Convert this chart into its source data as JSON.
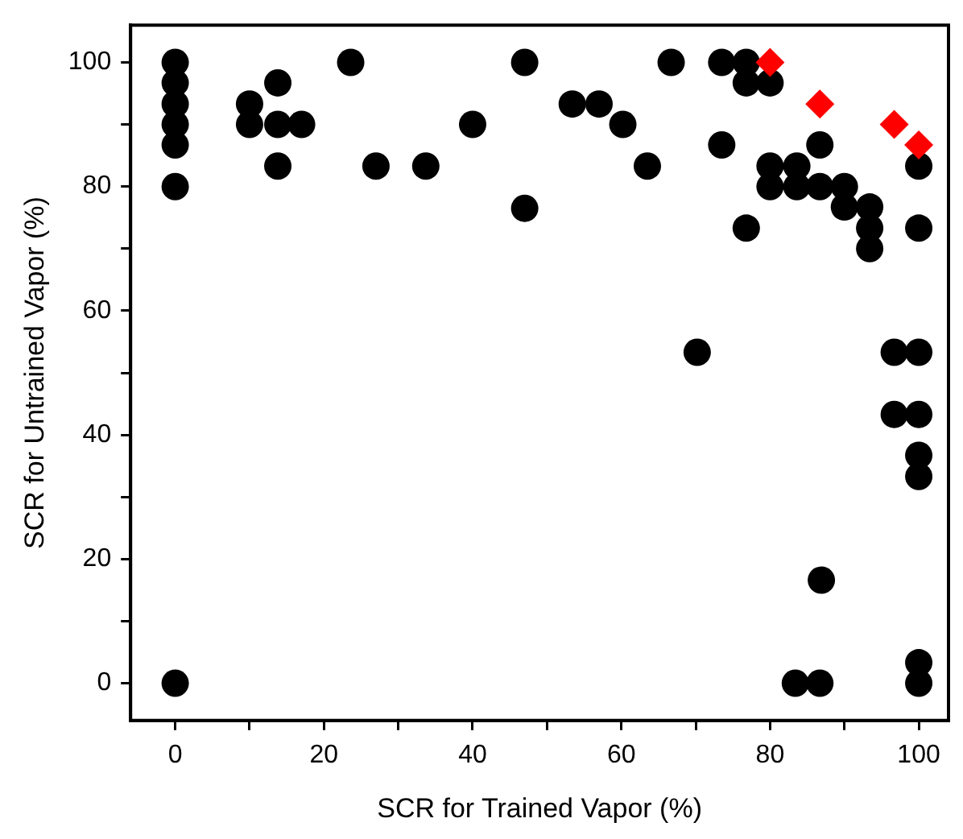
{
  "chart_data": {
    "type": "scatter",
    "xlabel": "SCR for Trained Vapor (%)",
    "ylabel": "SCR for Untrained Vapor (%)",
    "xlim": [
      -6,
      104
    ],
    "ylim": [
      -6,
      106
    ],
    "xticks": [
      0,
      {
        "value": 10,
        "label": null
      },
      20,
      {
        "value": 30,
        "label": null
      },
      40,
      {
        "value": 50,
        "label": null
      },
      60,
      {
        "value": 70,
        "label": null
      },
      80,
      {
        "value": 90,
        "label": null
      },
      100
    ],
    "yticks": [
      0,
      {
        "value": 10,
        "label": null
      },
      20,
      {
        "value": 30,
        "label": null
      },
      40,
      {
        "value": 50,
        "label": null
      },
      60,
      {
        "value": 70,
        "label": null
      },
      80,
      {
        "value": 90,
        "label": null
      },
      100
    ],
    "grid": false,
    "legend": false,
    "series": [
      {
        "color": "#000000",
        "marker": "circle",
        "x": [
          0,
          0,
          0,
          0,
          0,
          0,
          0,
          10,
          10,
          13.8,
          13.8,
          13.8,
          17,
          23.6,
          27,
          33.7,
          40,
          47,
          47,
          53.4,
          57,
          60.2,
          63.5,
          66.7,
          73.5,
          73.5,
          76.8,
          76.8,
          76.8,
          80,
          80,
          80,
          83.6,
          83.6,
          86.7,
          86.7,
          90,
          90,
          93.4,
          93.4,
          93.4,
          100,
          100,
          70.2,
          96.7,
          96.7,
          100,
          100,
          100,
          100,
          86.9,
          83.4,
          86.7,
          100,
          100
        ],
        "values": [
          100,
          96.7,
          93.3,
          90,
          86.7,
          80,
          0,
          93.3,
          90,
          96.7,
          90,
          83.3,
          90,
          100,
          83.3,
          83.3,
          90,
          100,
          76.5,
          93.3,
          93.3,
          90,
          83.3,
          100,
          100,
          86.7,
          100,
          96.7,
          73.3,
          96.7,
          83.3,
          80,
          83.3,
          80,
          86.7,
          80,
          80,
          76.7,
          76.7,
          73.3,
          70,
          83.3,
          73.3,
          53.3,
          53.3,
          43.3,
          53.3,
          43.3,
          36.7,
          33.3,
          16.6,
          0,
          0,
          3.3,
          0
        ]
      },
      {
        "color": "#ff0000",
        "marker": "diamond",
        "x": [
          80,
          86.7,
          96.7,
          100
        ],
        "values": [
          100,
          93.3,
          90,
          86.7
        ]
      }
    ]
  }
}
